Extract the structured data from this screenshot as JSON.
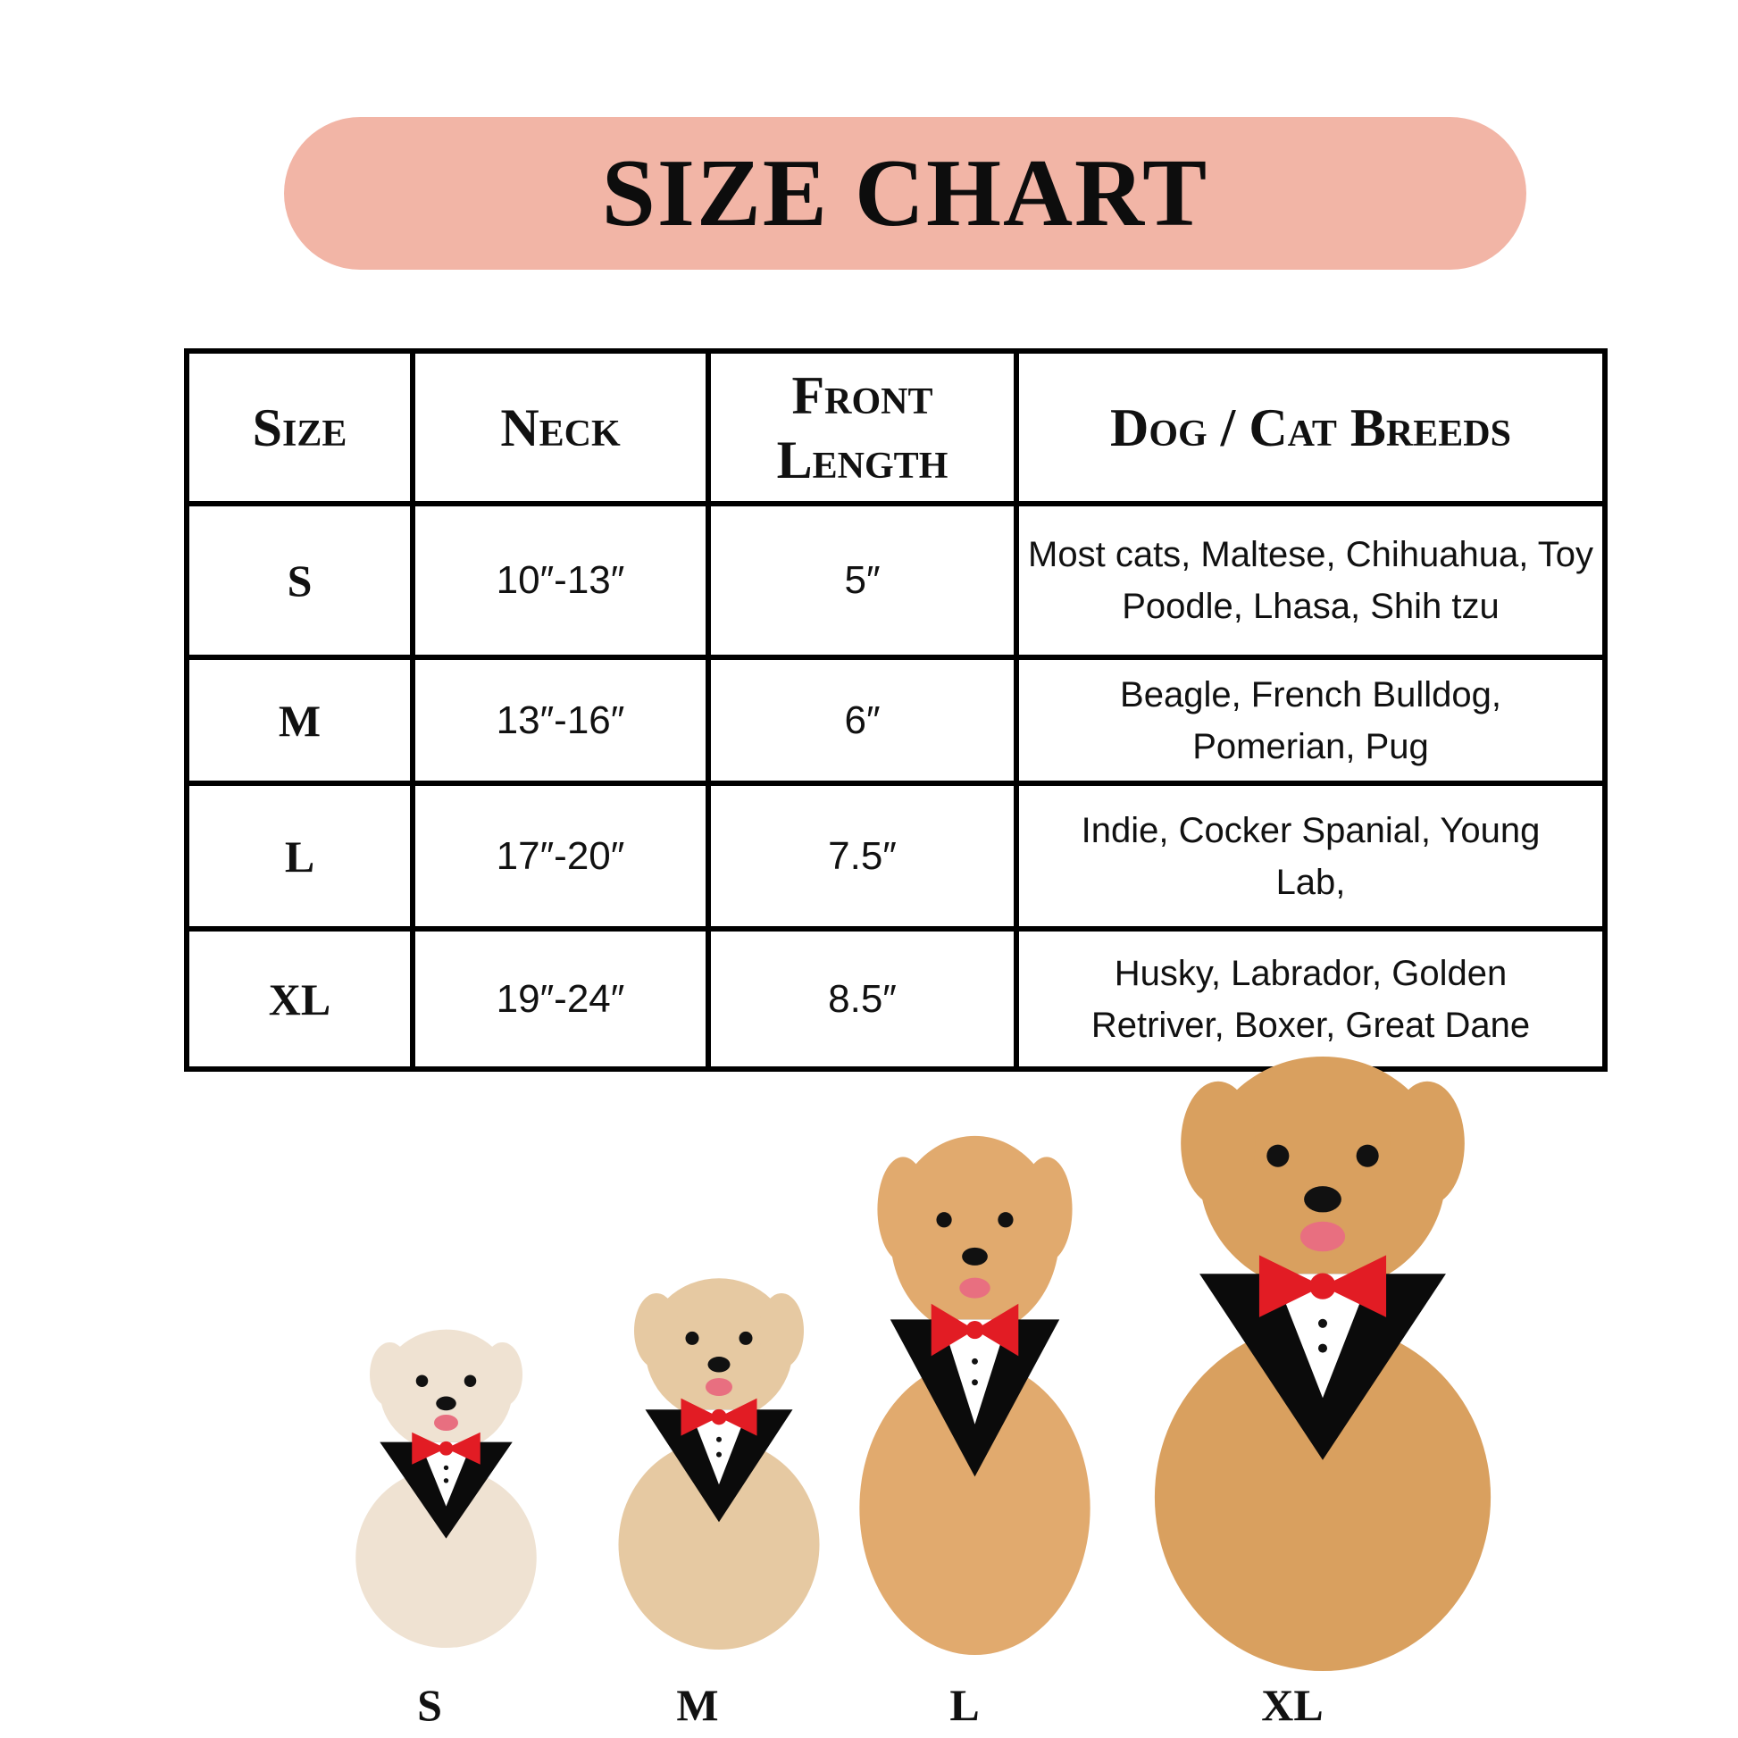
{
  "title": "SIZE CHART",
  "colors": {
    "banner": "#f2b5a6",
    "bandana": "#0b0b0b",
    "bowtie": "#e21c24",
    "fur": "#d9a66a"
  },
  "table": {
    "headers": [
      "Size",
      "Neck",
      "Front Length",
      "Dog / Cat Breeds"
    ],
    "rows": [
      {
        "size": "S",
        "neck": "10″-13″",
        "front_length": "5″",
        "breeds": "Most cats, Maltese, Chihuahua, Toy Poodle, Lhasa, Shih tzu"
      },
      {
        "size": "M",
        "neck": "13″-16″",
        "front_length": "6″",
        "breeds": "Beagle, French Bulldog, Pomerian, Pug"
      },
      {
        "size": "L",
        "neck": "17″-20″",
        "front_length": "7.5″",
        "breeds": "Indie, Cocker Spanial, Young Lab,"
      },
      {
        "size": "XL",
        "neck": "19″-24″",
        "front_length": "8.5″",
        "breeds": "Husky, Labrador, Golden Retriver, Boxer, Great Dane"
      }
    ]
  },
  "dog_labels": [
    "S",
    "M",
    "L",
    "XL"
  ]
}
